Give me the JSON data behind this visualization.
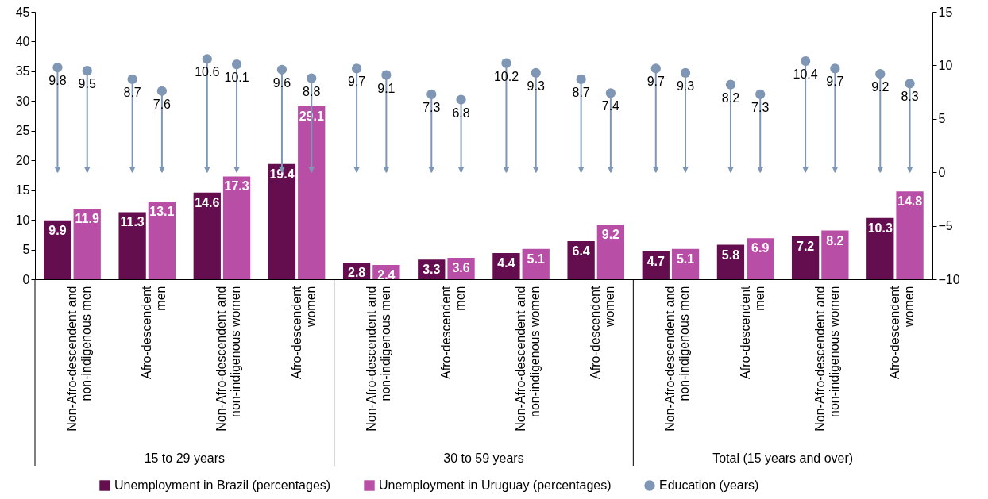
{
  "chart_data": {
    "type": "bar",
    "categories": [
      "Non-Afro-descendent and non-indigenous men",
      "Afro-descendent men",
      "Non-Afro-descendent and non-indigenous women",
      "Afro-descendent women",
      "Non-Afro-descendent and non-indigenous men",
      "Afro-descendent men",
      "Non-Afro-descendent and non-indigenous women",
      "Afro-descendent women",
      "Non-Afro-descendent and non-indigenous men",
      "Afro-descendent men",
      "Non-Afro-descendent and non-indigenous women",
      "Afro-descendent women"
    ],
    "series": [
      {
        "name": "Unemployment in Brazil (percentages)",
        "color": "#640d4f",
        "values": [
          9.9,
          11.3,
          14.6,
          19.4,
          2.8,
          3.3,
          4.4,
          6.4,
          4.7,
          5.8,
          7.2,
          10.3
        ]
      },
      {
        "name": "Unemployment in Uruguay (percentages)",
        "color": "#b84ea6",
        "values": [
          11.9,
          13.1,
          17.3,
          29.1,
          2.4,
          3.6,
          5.1,
          9.2,
          5.1,
          6.9,
          8.2,
          14.8
        ]
      },
      {
        "name": "Education (years)",
        "type": "lollipop",
        "axis": "y2",
        "color": "#7f96b5",
        "values": [
          9.8,
          8.7,
          10.6,
          9.6,
          9.7,
          7.3,
          10.2,
          8.7,
          9.7,
          8.2,
          10.4,
          9.2
        ]
      },
      {
        "type": "lollipop",
        "axis": "y2",
        "color": "#7f96b5",
        "values": [
          9.5,
          7.6,
          10.1,
          8.8,
          9.1,
          6.8,
          9.3,
          7.4,
          9.3,
          7.3,
          9.7,
          8.3
        ]
      }
    ],
    "ylim": [
      0,
      45
    ],
    "yticks": [
      0,
      5,
      10,
      15,
      20,
      25,
      30,
      35,
      40,
      45
    ],
    "y2lim": [
      -10,
      15
    ],
    "y2ticks": [
      -10,
      -5,
      0,
      5,
      10,
      15
    ],
    "data_labels": true,
    "legend": "bottom",
    "marker": "circle",
    "annotations": [
      "15 to 29 years",
      "30 to 59 years",
      "Total (15 years and over)"
    ]
  }
}
